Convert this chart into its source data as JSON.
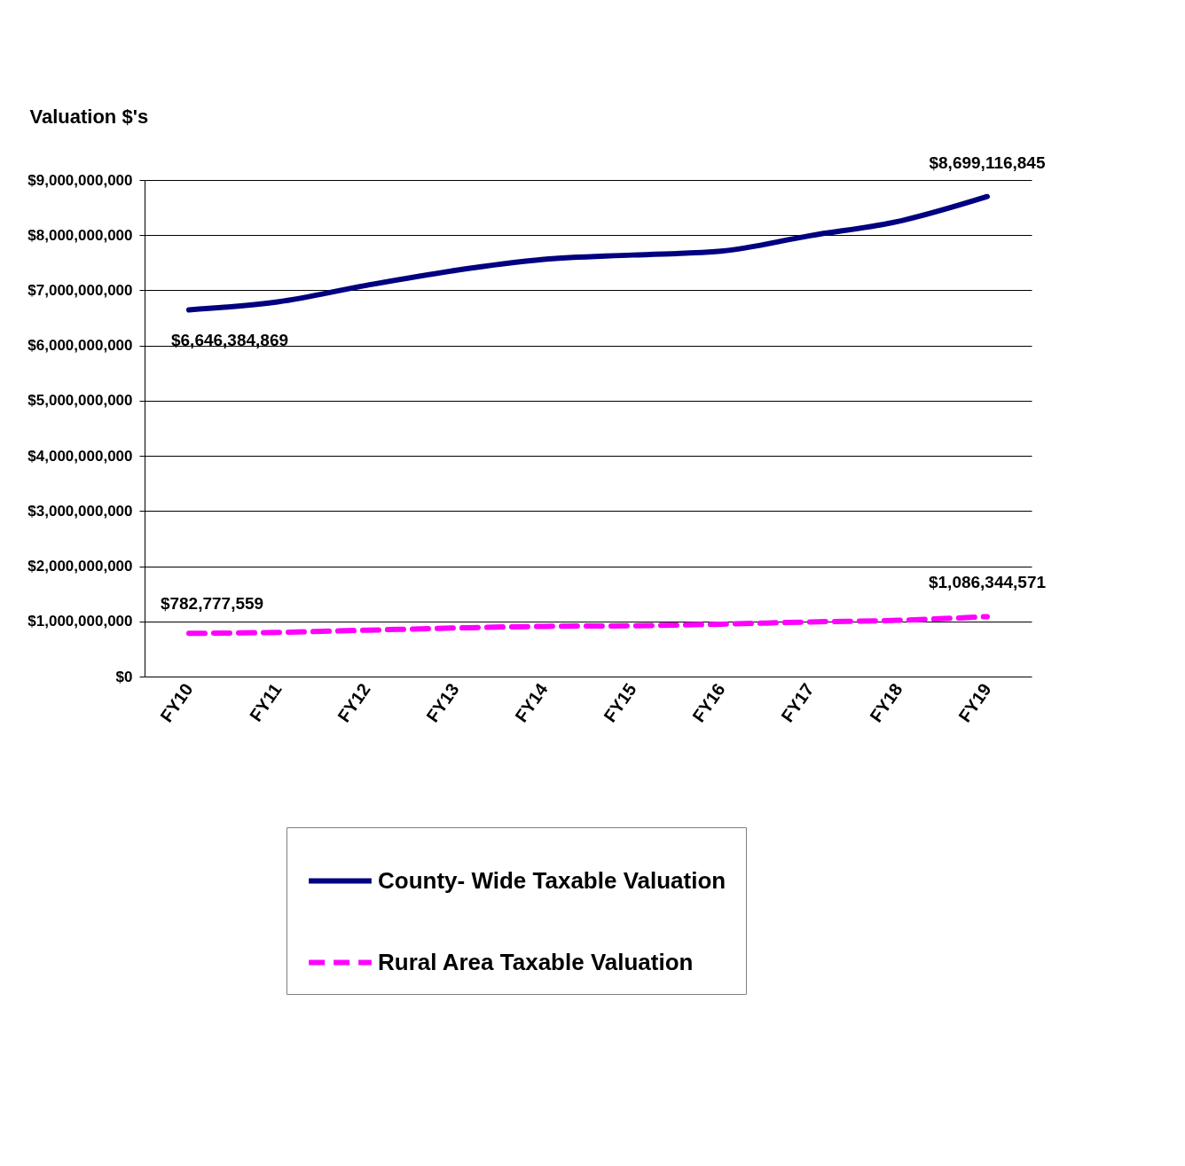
{
  "chart_data": {
    "type": "line",
    "ylabel": "Valuation $'s",
    "categories": [
      "FY10",
      "FY11",
      "FY12",
      "FY13",
      "FY14",
      "FY15",
      "FY16",
      "FY17",
      "FY18",
      "FY19"
    ],
    "series": [
      {
        "name": "County- Wide Taxable Valuation",
        "color": "#000080",
        "line_style": "solid",
        "values": [
          6646384869,
          6790000000,
          7090000000,
          7360000000,
          7560000000,
          7640000000,
          7710000000,
          7990000000,
          8250000000,
          8699116845
        ],
        "value_labels": [
          "$6,646,384,869",
          null,
          null,
          null,
          null,
          null,
          null,
          null,
          null,
          "$8,699,116,845"
        ]
      },
      {
        "name": "Rural Area Taxable Valuation",
        "color": "#ff00ff",
        "line_style": "dashed",
        "values": [
          782777559,
          800000000,
          840000000,
          880000000,
          910000000,
          920000000,
          950000000,
          990000000,
          1020000000,
          1086344571
        ],
        "value_labels": [
          "$782,777,559",
          null,
          null,
          null,
          null,
          null,
          null,
          null,
          null,
          "$1,086,344,571"
        ]
      }
    ],
    "ylim": [
      0,
      9000000000
    ],
    "yticks": [
      {
        "value": 0,
        "label": "$0"
      },
      {
        "value": 1000000000,
        "label": "$1,000,000,000"
      },
      {
        "value": 2000000000,
        "label": "$2,000,000,000"
      },
      {
        "value": 3000000000,
        "label": "$3,000,000,000"
      },
      {
        "value": 4000000000,
        "label": "$4,000,000,000"
      },
      {
        "value": 5000000000,
        "label": "$5,000,000,000"
      },
      {
        "value": 6000000000,
        "label": "$6,000,000,000"
      },
      {
        "value": 7000000000,
        "label": "$7,000,000,000"
      },
      {
        "value": 8000000000,
        "label": "$8,000,000,000"
      },
      {
        "value": 9000000000,
        "label": "$9,000,000,000"
      }
    ],
    "grid": "y",
    "legend": "bottom",
    "marker": "none"
  }
}
